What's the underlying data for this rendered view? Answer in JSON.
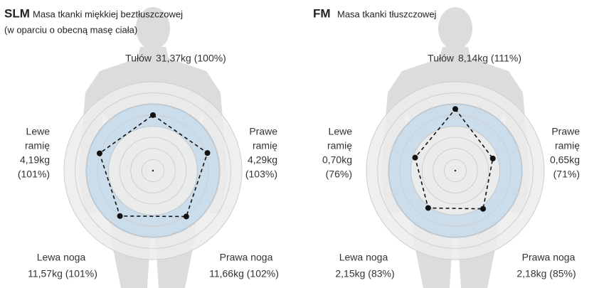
{
  "chart_data": [
    {
      "type": "radar",
      "title": "SLM",
      "subtitle": "Masa tkanki miękkiej beztłuszczowej",
      "note": "(w oparciu o obecną masę ciała)",
      "categories": [
        "Tułów",
        "Prawe ramię",
        "Prawa noga",
        "Lewa noga",
        "Lewe ramię"
      ],
      "values": [
        100,
        103,
        102,
        101,
        101
      ],
      "value_labels": [
        "31,37kg (100%)",
        "4,29kg (103%)",
        "11,66kg (102%)",
        "11,57kg (101%)",
        "4,19kg (101%)"
      ],
      "rlim": [
        0,
        160
      ],
      "rticks": [
        20,
        40,
        60,
        80,
        100,
        120,
        140,
        160
      ],
      "normal_range": [
        80,
        120
      ],
      "color": "#111111"
    },
    {
      "type": "radar",
      "title": "FM",
      "subtitle": "Masa tkanki tłuszczowej",
      "categories": [
        "Tułów",
        "Prawe ramię",
        "Prawa noga",
        "Lewa noga",
        "Lewe ramię"
      ],
      "values": [
        111,
        71,
        85,
        83,
        76
      ],
      "value_labels": [
        "8,14kg (111%)",
        "0,65kg (71%)",
        "2,18kg (85%)",
        "2,15kg (83%)",
        "0,70kg (76%)"
      ],
      "rlim": [
        0,
        160
      ],
      "rticks": [
        20,
        40,
        60,
        80,
        100,
        120,
        140,
        160
      ],
      "normal_range": [
        80,
        120
      ],
      "color": "#111111"
    }
  ]
}
